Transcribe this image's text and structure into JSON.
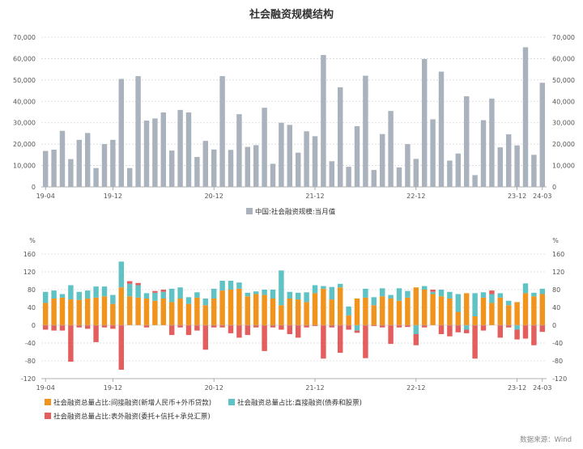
{
  "title": "社会融资规模结构",
  "source": "数据来源：Wind",
  "chart_data": [
    {
      "type": "bar",
      "categories": [
        "19-04",
        "19-05",
        "19-06",
        "19-07",
        "19-08",
        "19-09",
        "19-10",
        "19-11",
        "19-12",
        "20-01",
        "20-02",
        "20-03",
        "20-04",
        "20-05",
        "20-06",
        "20-07",
        "20-08",
        "20-09",
        "20-10",
        "20-11",
        "20-12",
        "21-01",
        "21-02",
        "21-03",
        "21-04",
        "21-05",
        "21-06",
        "21-07",
        "21-08",
        "21-09",
        "21-10",
        "21-11",
        "21-12",
        "22-01",
        "22-02",
        "22-03",
        "22-04",
        "22-05",
        "22-06",
        "22-07",
        "22-08",
        "22-09",
        "22-10",
        "22-11",
        "22-12",
        "23-01",
        "23-02",
        "23-03",
        "23-04",
        "23-05",
        "23-06",
        "23-07",
        "23-08",
        "23-09",
        "23-10",
        "23-11",
        "23-12",
        "24-01",
        "24-02",
        "24-03"
      ],
      "x_tick_labels": [
        "19-04",
        "19-12",
        "20-12",
        "21-12",
        "22-12",
        "23-12",
        "24-03"
      ],
      "series": [
        {
          "name": "中国:社会融资规模:当月值",
          "values": [
            16800,
            17400,
            26200,
            13000,
            22000,
            25200,
            8800,
            20000,
            22000,
            50500,
            8800,
            51800,
            31000,
            32000,
            34800,
            17000,
            36000,
            34800,
            14000,
            21500,
            17500,
            51800,
            17300,
            34000,
            18700,
            19500,
            37000,
            10800,
            30000,
            29000,
            16000,
            26000,
            23700,
            61700,
            12000,
            46600,
            9400,
            28400,
            52000,
            7900,
            24700,
            35500,
            9100,
            20000,
            13100,
            59800,
            31600,
            53900,
            12300,
            15600,
            42400,
            5500,
            31200,
            41300,
            18500,
            24600,
            19400,
            65300,
            15000,
            48700
          ]
        }
      ],
      "yticks": [
        "0",
        "10,000",
        "20,000",
        "30,000",
        "40,000",
        "50,000",
        "60,000",
        "70,000"
      ],
      "ylim": [
        0,
        70000
      ],
      "legend_position": "bottom-center",
      "color": "#a9b2bd"
    },
    {
      "type": "bar",
      "stacked": true,
      "categories": [
        "19-04",
        "19-05",
        "19-06",
        "19-07",
        "19-08",
        "19-09",
        "19-10",
        "19-11",
        "19-12",
        "20-01",
        "20-02",
        "20-03",
        "20-04",
        "20-05",
        "20-06",
        "20-07",
        "20-08",
        "20-09",
        "20-10",
        "20-11",
        "20-12",
        "21-01",
        "21-02",
        "21-03",
        "21-04",
        "21-05",
        "21-06",
        "21-07",
        "21-08",
        "21-09",
        "21-10",
        "21-11",
        "21-12",
        "22-01",
        "22-02",
        "22-03",
        "22-04",
        "22-05",
        "22-06",
        "22-07",
        "22-08",
        "22-09",
        "22-10",
        "22-11",
        "22-12",
        "23-01",
        "23-02",
        "23-03",
        "23-04",
        "23-05",
        "23-06",
        "23-07",
        "23-08",
        "23-09",
        "23-10",
        "23-11",
        "23-12",
        "24-01",
        "24-02",
        "24-03"
      ],
      "x_tick_labels": [
        "19-04",
        "19-12",
        "20-12",
        "21-12",
        "22-12",
        "23-12",
        "24-03"
      ],
      "y_unit": "%",
      "series": [
        {
          "name": "社会融资总量占比:间接融资(新增人民币+外币贷款)",
          "values": [
            50,
            60,
            62,
            58,
            57,
            60,
            62,
            65,
            48,
            85,
            65,
            62,
            60,
            55,
            60,
            52,
            60,
            48,
            62,
            45,
            60,
            78,
            80,
            82,
            65,
            70,
            68,
            60,
            45,
            60,
            58,
            52,
            72,
            82,
            58,
            85,
            22,
            60,
            62,
            45,
            65,
            60,
            55,
            62,
            85,
            80,
            70,
            65,
            60,
            30,
            72,
            20,
            62,
            50,
            62,
            45,
            52,
            72,
            65,
            70
          ],
          "color": "#f0941d"
        },
        {
          "name": "社会融资总量占比:直接融资(债券和股票)",
          "values": [
            25,
            18,
            8,
            32,
            18,
            18,
            25,
            22,
            20,
            58,
            28,
            28,
            12,
            18,
            15,
            30,
            25,
            15,
            12,
            15,
            22,
            22,
            20,
            14,
            8,
            6,
            12,
            20,
            78,
            15,
            15,
            22,
            18,
            6,
            28,
            8,
            20,
            -12,
            20,
            18,
            18,
            8,
            28,
            15,
            -20,
            8,
            5,
            15,
            15,
            40,
            -10,
            52,
            12,
            20,
            10,
            10,
            -10,
            22,
            8,
            12
          ],
          "color": "#5fc2c5"
        },
        {
          "name": "社会融资总量占比:表外融资(委托+信托+承兑汇票)",
          "values": [
            -10,
            -12,
            -12,
            -82,
            -5,
            -8,
            -38,
            -5,
            -8,
            -100,
            6,
            5,
            -5,
            4,
            5,
            -22,
            -5,
            -22,
            -12,
            -55,
            -5,
            -5,
            -18,
            -28,
            -22,
            -5,
            -58,
            -5,
            -10,
            -20,
            -28,
            -5,
            -2,
            -75,
            -5,
            -62,
            -10,
            -5,
            -74,
            -2,
            -5,
            -42,
            -5,
            -4,
            -25,
            -5,
            5,
            -20,
            -25,
            -16,
            -8,
            -75,
            -12,
            8,
            -28,
            -5,
            -22,
            -30,
            -45,
            -15
          ],
          "color": "#e45e5e"
        }
      ],
      "yticks": [
        "-120",
        "-80",
        "-40",
        "0",
        "40",
        "80",
        "120",
        "160"
      ],
      "ylim": [
        -120,
        160
      ],
      "legend_position": "bottom-left"
    }
  ]
}
